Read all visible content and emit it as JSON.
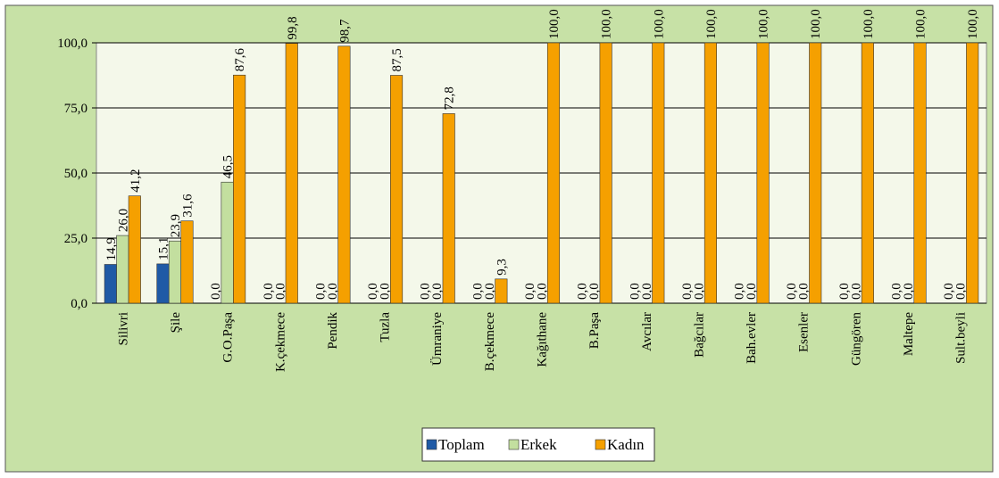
{
  "chart_data": {
    "type": "bar",
    "categories": [
      "Silivri",
      "Şile",
      "G.O.Paşa",
      "K.çekmece",
      "Pendik",
      "Tuzla",
      "Ümraniye",
      "B.çekmece",
      "Kağıthane",
      "B.Paşa",
      "Avcılar",
      "Bağcılar",
      "Bah.evler",
      "Esenler",
      "Güngören",
      "Maltepe",
      "Sult.beyli"
    ],
    "series": [
      {
        "name": "Toplam",
        "color": "#1f5aa6",
        "values": [
          14.9,
          15.1,
          0,
          0,
          0,
          0,
          0,
          0,
          0,
          0,
          0,
          0,
          0,
          0,
          0,
          0,
          0
        ],
        "value_labels": [
          "14,9",
          "15,1",
          "0,0",
          "0,0",
          "0,0",
          "0,0",
          "0,0",
          "0,0",
          "0,0",
          "0,0",
          "0,0",
          "0,0",
          "0,0",
          "0,0",
          "0,0",
          "0,0",
          "0,0"
        ]
      },
      {
        "name": "Erkek",
        "color": "#c3df9f",
        "values": [
          26.0,
          23.9,
          46.5,
          0,
          0,
          0,
          0,
          0,
          0,
          0,
          0,
          0,
          0,
          0,
          0,
          0,
          0
        ],
        "value_labels": [
          "26,0",
          "23,9",
          "46,5",
          "0,0",
          "0,0",
          "0,0",
          "0,0",
          "0,0",
          "0,0",
          "0,0",
          "0,0",
          "0,0",
          "0,0",
          "0,0",
          "0,0",
          "0,0",
          "0,0"
        ]
      },
      {
        "name": "Kadın",
        "color": "#f5a000",
        "values": [
          41.2,
          31.6,
          87.6,
          99.8,
          98.7,
          87.5,
          72.8,
          9.3,
          100,
          100,
          100,
          100,
          100,
          100,
          100,
          100,
          100
        ],
        "value_labels": [
          "41,2",
          "31,6",
          "87,6",
          "99,8",
          "98,7",
          "87,5",
          "72,8",
          "9,3",
          "100,0",
          "100,0",
          "100,0",
          "100,0",
          "100,0",
          "100,0",
          "100,0",
          "100,0",
          "100,0"
        ]
      }
    ],
    "ylim": [
      0,
      100
    ],
    "yticks": [
      {
        "value": 0,
        "label": "0,0"
      },
      {
        "value": 25,
        "label": "25,0"
      },
      {
        "value": 50,
        "label": "50,0"
      },
      {
        "value": 75,
        "label": "75,0"
      },
      {
        "value": 100,
        "label": "100,0"
      }
    ],
    "grid": true,
    "legend": "bottom"
  }
}
